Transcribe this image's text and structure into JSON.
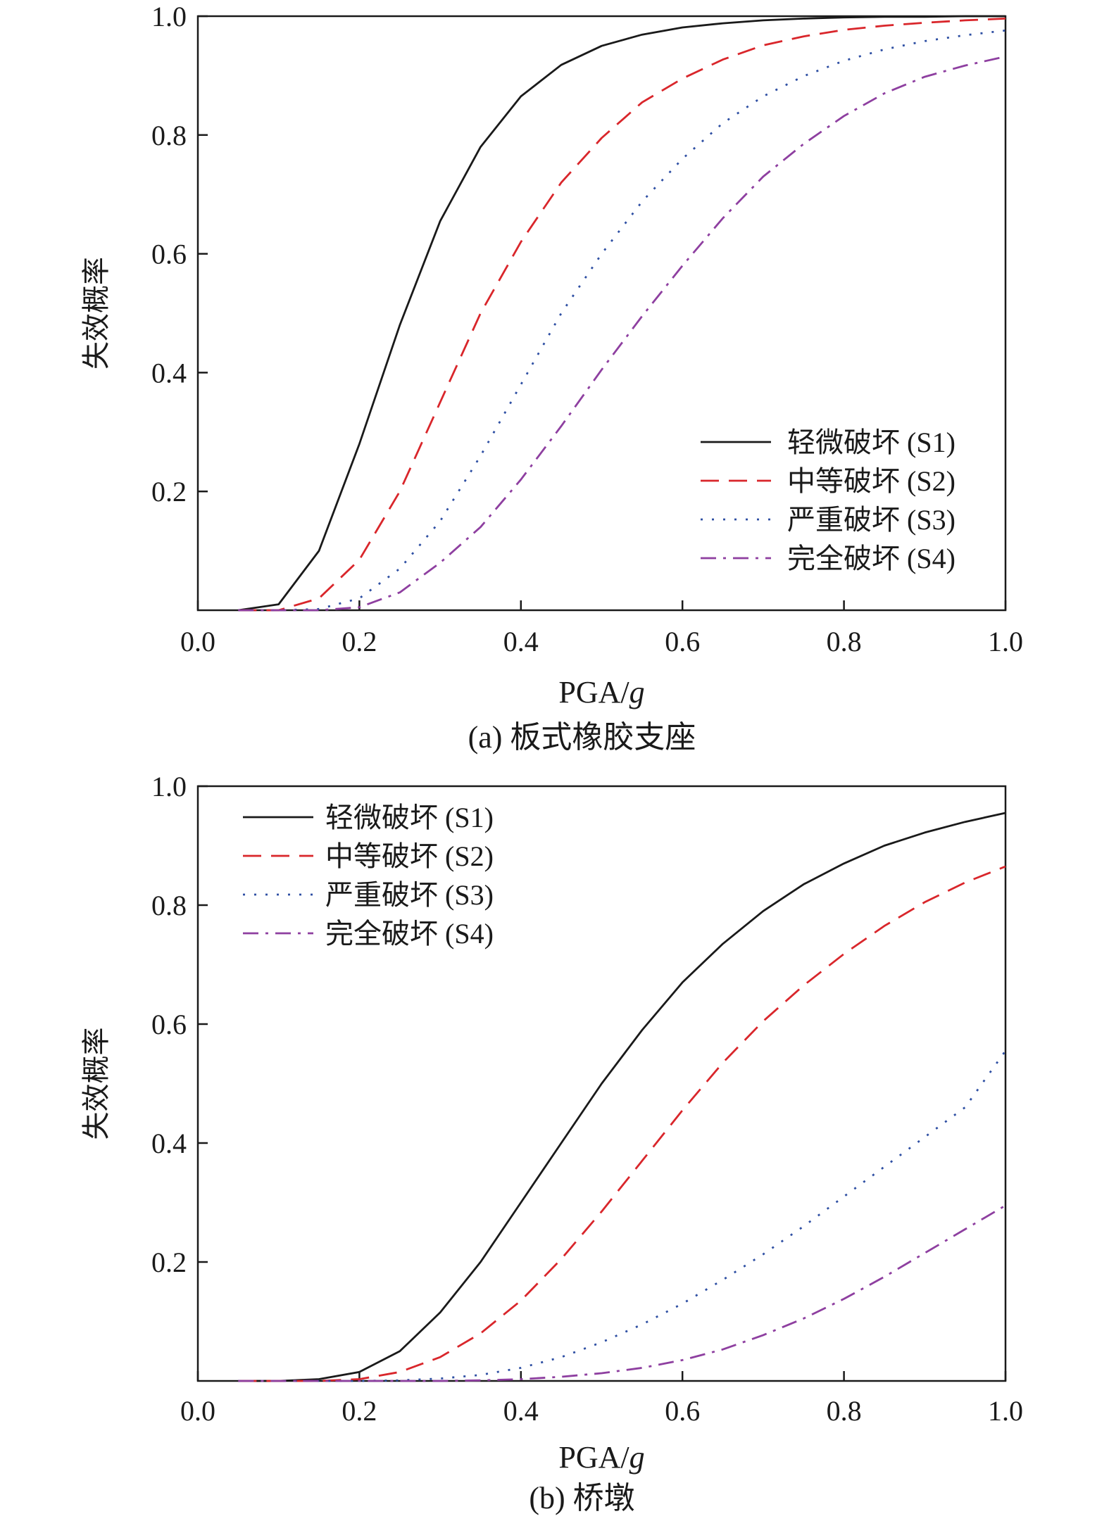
{
  "chart_data": [
    {
      "type": "line",
      "panel": "a",
      "caption": "(a) 板式橡胶支座",
      "xlabel_text": "PGA/",
      "xlabel_italic": "g",
      "ylabel": "失效概率",
      "xlim": [
        0.0,
        1.0
      ],
      "ylim": [
        0.0,
        1.0
      ],
      "x_ticks": [
        "0.0",
        "0.2",
        "0.4",
        "0.6",
        "0.8",
        "1.0"
      ],
      "y_ticks": [
        "0.2",
        "0.4",
        "0.6",
        "0.8",
        "1.0"
      ],
      "grid": false,
      "legend_position": "bottom-right",
      "x": [
        0.05,
        0.1,
        0.15,
        0.2,
        0.25,
        0.3,
        0.35,
        0.4,
        0.45,
        0.5,
        0.55,
        0.6,
        0.65,
        0.7,
        0.75,
        0.8,
        0.85,
        0.9,
        0.95,
        1.0
      ],
      "series": [
        {
          "name": "轻微破坏 (S1)",
          "color": "#1a1a1a",
          "dash": "solid",
          "values": [
            0.0,
            0.01,
            0.1,
            0.28,
            0.48,
            0.655,
            0.78,
            0.865,
            0.918,
            0.95,
            0.969,
            0.981,
            0.988,
            0.993,
            0.996,
            0.998,
            0.999,
            0.999,
            1.0,
            1.0
          ]
        },
        {
          "name": "中等破坏 (S2)",
          "color": "#d9262b",
          "dash": "dashed",
          "values": [
            0.0,
            0.0,
            0.02,
            0.085,
            0.2,
            0.35,
            0.5,
            0.62,
            0.72,
            0.795,
            0.855,
            0.895,
            0.927,
            0.951,
            0.966,
            0.977,
            0.984,
            0.989,
            0.993,
            0.996
          ]
        },
        {
          "name": "严重破坏 (S3)",
          "color": "#2e4fa3",
          "dash": "dotted",
          "values": [
            0.0,
            0.0,
            0.002,
            0.02,
            0.07,
            0.15,
            0.26,
            0.38,
            0.5,
            0.6,
            0.688,
            0.76,
            0.82,
            0.865,
            0.899,
            0.925,
            0.944,
            0.958,
            0.968,
            0.976
          ]
        },
        {
          "name": "完全破坏 (S4)",
          "color": "#8e3fa0",
          "dash": "dashdot",
          "values": [
            0.0,
            0.0,
            0.0,
            0.005,
            0.03,
            0.08,
            0.14,
            0.22,
            0.31,
            0.405,
            0.495,
            0.58,
            0.66,
            0.73,
            0.785,
            0.832,
            0.87,
            0.898,
            0.917,
            0.932
          ]
        }
      ]
    },
    {
      "type": "line",
      "panel": "b",
      "caption": "(b) 桥墩",
      "xlabel_text": "PGA/",
      "xlabel_italic": "g",
      "ylabel": "失效概率",
      "xlim": [
        0.0,
        1.0
      ],
      "ylim": [
        0.0,
        1.0
      ],
      "x_ticks": [
        "0.0",
        "0.2",
        "0.4",
        "0.6",
        "0.8",
        "1.0"
      ],
      "y_ticks": [
        "0.2",
        "0.4",
        "0.6",
        "0.8",
        "1.0"
      ],
      "grid": false,
      "legend_position": "top-left",
      "x": [
        0.05,
        0.1,
        0.15,
        0.2,
        0.25,
        0.3,
        0.35,
        0.4,
        0.45,
        0.5,
        0.55,
        0.6,
        0.65,
        0.7,
        0.75,
        0.8,
        0.85,
        0.9,
        0.95,
        1.0
      ],
      "series": [
        {
          "name": "轻微破坏 (S1)",
          "color": "#1a1a1a",
          "dash": "solid",
          "values": [
            0.0,
            0.0,
            0.003,
            0.015,
            0.05,
            0.115,
            0.2,
            0.3,
            0.4,
            0.5,
            0.59,
            0.67,
            0.735,
            0.79,
            0.835,
            0.87,
            0.9,
            0.922,
            0.94,
            0.955
          ]
        },
        {
          "name": "中等破坏 (S2)",
          "color": "#d9262b",
          "dash": "dashed",
          "values": [
            0.0,
            0.0,
            0.0,
            0.003,
            0.015,
            0.04,
            0.08,
            0.135,
            0.205,
            0.285,
            0.37,
            0.455,
            0.535,
            0.605,
            0.665,
            0.718,
            0.765,
            0.805,
            0.838,
            0.865
          ]
        },
        {
          "name": "严重破坏 (S3)",
          "color": "#2e4fa3",
          "dash": "dotted",
          "values": [
            0.0,
            0.0,
            0.0,
            0.0,
            0.001,
            0.004,
            0.01,
            0.022,
            0.04,
            0.065,
            0.095,
            0.13,
            0.17,
            0.213,
            0.26,
            0.31,
            0.36,
            0.41,
            0.46,
            0.555
          ]
        },
        {
          "name": "完全破坏 (S4)",
          "color": "#8e3fa0",
          "dash": "dashdot",
          "values": [
            0.0,
            0.0,
            0.0,
            0.0,
            0.0,
            0.0,
            0.001,
            0.003,
            0.007,
            0.013,
            0.022,
            0.035,
            0.053,
            0.077,
            0.105,
            0.138,
            0.175,
            0.215,
            0.255,
            0.295
          ]
        }
      ]
    }
  ]
}
